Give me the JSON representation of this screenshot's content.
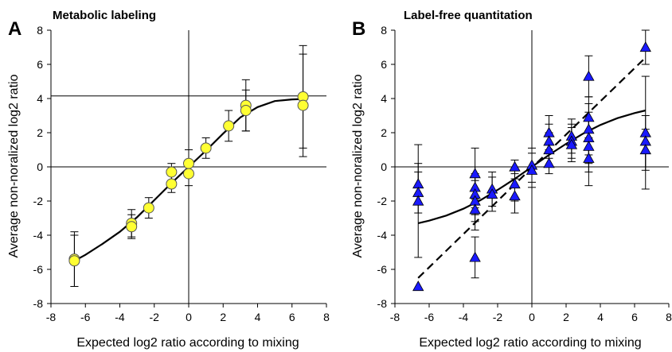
{
  "chart_data": [
    {
      "type": "scatter",
      "letter": "A",
      "title": "Metabolic labeling",
      "xlabel": "Expected log2 ratio according to mixing",
      "ylabel": "Average non-noralized log2 ratio",
      "xlim": [
        -8,
        8
      ],
      "ylim": [
        -8,
        8
      ],
      "xticks": [
        "-8",
        "-6",
        "-4",
        "-2",
        "0",
        "2",
        "4",
        "6",
        "8"
      ],
      "yticks": [
        "-8",
        "-6",
        "-4",
        "-2",
        "0",
        "2",
        "4",
        "6",
        "8"
      ],
      "marker": "circle",
      "marker_color": "#ffff33",
      "points": [
        {
          "x": -6.64,
          "y": -5.4,
          "err": 1.6
        },
        {
          "x": -6.64,
          "y": -5.5,
          "err": 1.5
        },
        {
          "x": -3.32,
          "y": -3.3,
          "err": 0.8
        },
        {
          "x": -3.32,
          "y": -3.5,
          "err": 0.7
        },
        {
          "x": -2.32,
          "y": -2.4,
          "err": 0.6
        },
        {
          "x": -1.0,
          "y": -0.3,
          "err": 0.5
        },
        {
          "x": -1.0,
          "y": -1.0,
          "err": 0.5
        },
        {
          "x": 0.0,
          "y": 0.2,
          "err": 0.8
        },
        {
          "x": 0.0,
          "y": -0.4,
          "err": 0.7
        },
        {
          "x": 1.0,
          "y": 1.1,
          "err": 0.6
        },
        {
          "x": 2.32,
          "y": 2.4,
          "err": 0.9
        },
        {
          "x": 3.32,
          "y": 3.6,
          "err": 1.5
        },
        {
          "x": 3.32,
          "y": 3.3,
          "err": 1.2
        },
        {
          "x": 6.64,
          "y": 4.1,
          "err": 3.0
        },
        {
          "x": 6.64,
          "y": 3.6,
          "err": 3.0
        }
      ],
      "fit_curve": {
        "style": "solid",
        "points": [
          [
            -6.64,
            -5.5
          ],
          [
            -6,
            -5.15
          ],
          [
            -5,
            -4.5
          ],
          [
            -4,
            -3.8
          ],
          [
            -3,
            -2.95
          ],
          [
            -2,
            -1.95
          ],
          [
            -1,
            -0.95
          ],
          [
            0,
            0.0
          ],
          [
            1,
            0.95
          ],
          [
            2,
            1.95
          ],
          [
            3,
            2.9
          ],
          [
            4,
            3.5
          ],
          [
            5,
            3.85
          ],
          [
            6,
            3.95
          ],
          [
            6.64,
            3.97
          ]
        ]
      },
      "hline_y": 4.15
    },
    {
      "type": "scatter",
      "letter": "B",
      "title": "Label-free quantitation",
      "xlabel": "Expected log2 ratio according to mixing",
      "ylabel": "Average non-noralized log2 ratio",
      "xlim": [
        -8,
        8
      ],
      "ylim": [
        -8,
        8
      ],
      "xticks": [
        "-8",
        "-6",
        "-4",
        "-2",
        "0",
        "2",
        "4",
        "6",
        "8"
      ],
      "yticks": [
        "-8",
        "-6",
        "-4",
        "-2",
        "0",
        "2",
        "4",
        "6",
        "8"
      ],
      "marker": "triangle",
      "marker_color": "#1a1aff",
      "points": [
        {
          "x": -6.64,
          "y": -1.0,
          "err": 1.2
        },
        {
          "x": -6.64,
          "y": -1.5,
          "err": 1.2
        },
        {
          "x": -6.64,
          "y": -2.0,
          "err": 3.3
        },
        {
          "x": -6.64,
          "y": -7.0,
          "err": 0.0
        },
        {
          "x": -3.32,
          "y": -0.4,
          "err": 1.5
        },
        {
          "x": -3.32,
          "y": -1.2,
          "err": 1.2
        },
        {
          "x": -3.32,
          "y": -1.6,
          "err": 1.2
        },
        {
          "x": -3.32,
          "y": -2.0,
          "err": 1.2
        },
        {
          "x": -3.32,
          "y": -2.5,
          "err": 1.2
        },
        {
          "x": -3.32,
          "y": -5.3,
          "err": 1.2
        },
        {
          "x": -2.32,
          "y": -1.3,
          "err": 1.0
        },
        {
          "x": -2.32,
          "y": -1.6,
          "err": 1.0
        },
        {
          "x": -1.0,
          "y": 0.0,
          "err": 0.4
        },
        {
          "x": -1.0,
          "y": -1.0,
          "err": 1.0
        },
        {
          "x": -1.0,
          "y": -1.7,
          "err": 1.0
        },
        {
          "x": 0.0,
          "y": 0.1,
          "err": 1.0
        },
        {
          "x": 0.0,
          "y": -0.2,
          "err": 1.0
        },
        {
          "x": 1.0,
          "y": 2.0,
          "err": 1.0
        },
        {
          "x": 1.0,
          "y": 1.5,
          "err": 1.0
        },
        {
          "x": 1.0,
          "y": 1.0,
          "err": 1.0
        },
        {
          "x": 1.0,
          "y": 0.2,
          "err": 0.6
        },
        {
          "x": 2.32,
          "y": 1.8,
          "err": 1.0
        },
        {
          "x": 2.32,
          "y": 1.5,
          "err": 1.0
        },
        {
          "x": 2.32,
          "y": 1.3,
          "err": 1.0
        },
        {
          "x": 3.32,
          "y": 5.3,
          "err": 1.2
        },
        {
          "x": 3.32,
          "y": 2.9,
          "err": 1.2
        },
        {
          "x": 3.32,
          "y": 2.2,
          "err": 1.5
        },
        {
          "x": 3.32,
          "y": 1.7,
          "err": 1.5
        },
        {
          "x": 3.32,
          "y": 1.2,
          "err": 1.5
        },
        {
          "x": 3.32,
          "y": 0.5,
          "err": 1.6
        },
        {
          "x": 6.64,
          "y": 7.0,
          "err": 1.0
        },
        {
          "x": 6.64,
          "y": 2.0,
          "err": 3.3
        },
        {
          "x": 6.64,
          "y": 1.5,
          "err": 1.5
        },
        {
          "x": 6.64,
          "y": 1.0,
          "err": 1.2
        }
      ],
      "fit_curve": {
        "style": "solid",
        "points": [
          [
            -6.64,
            -3.3
          ],
          [
            -6,
            -3.15
          ],
          [
            -5,
            -2.85
          ],
          [
            -4,
            -2.45
          ],
          [
            -3,
            -1.95
          ],
          [
            -2,
            -1.35
          ],
          [
            -1,
            -0.7
          ],
          [
            0,
            0.0
          ],
          [
            1,
            0.7
          ],
          [
            2,
            1.35
          ],
          [
            3,
            1.95
          ],
          [
            4,
            2.45
          ],
          [
            5,
            2.85
          ],
          [
            6,
            3.15
          ],
          [
            6.64,
            3.3
          ]
        ]
      },
      "identity_line": {
        "style": "dashed",
        "points": [
          [
            -6.64,
            -6.5
          ],
          [
            6.64,
            6.4
          ]
        ]
      }
    }
  ]
}
